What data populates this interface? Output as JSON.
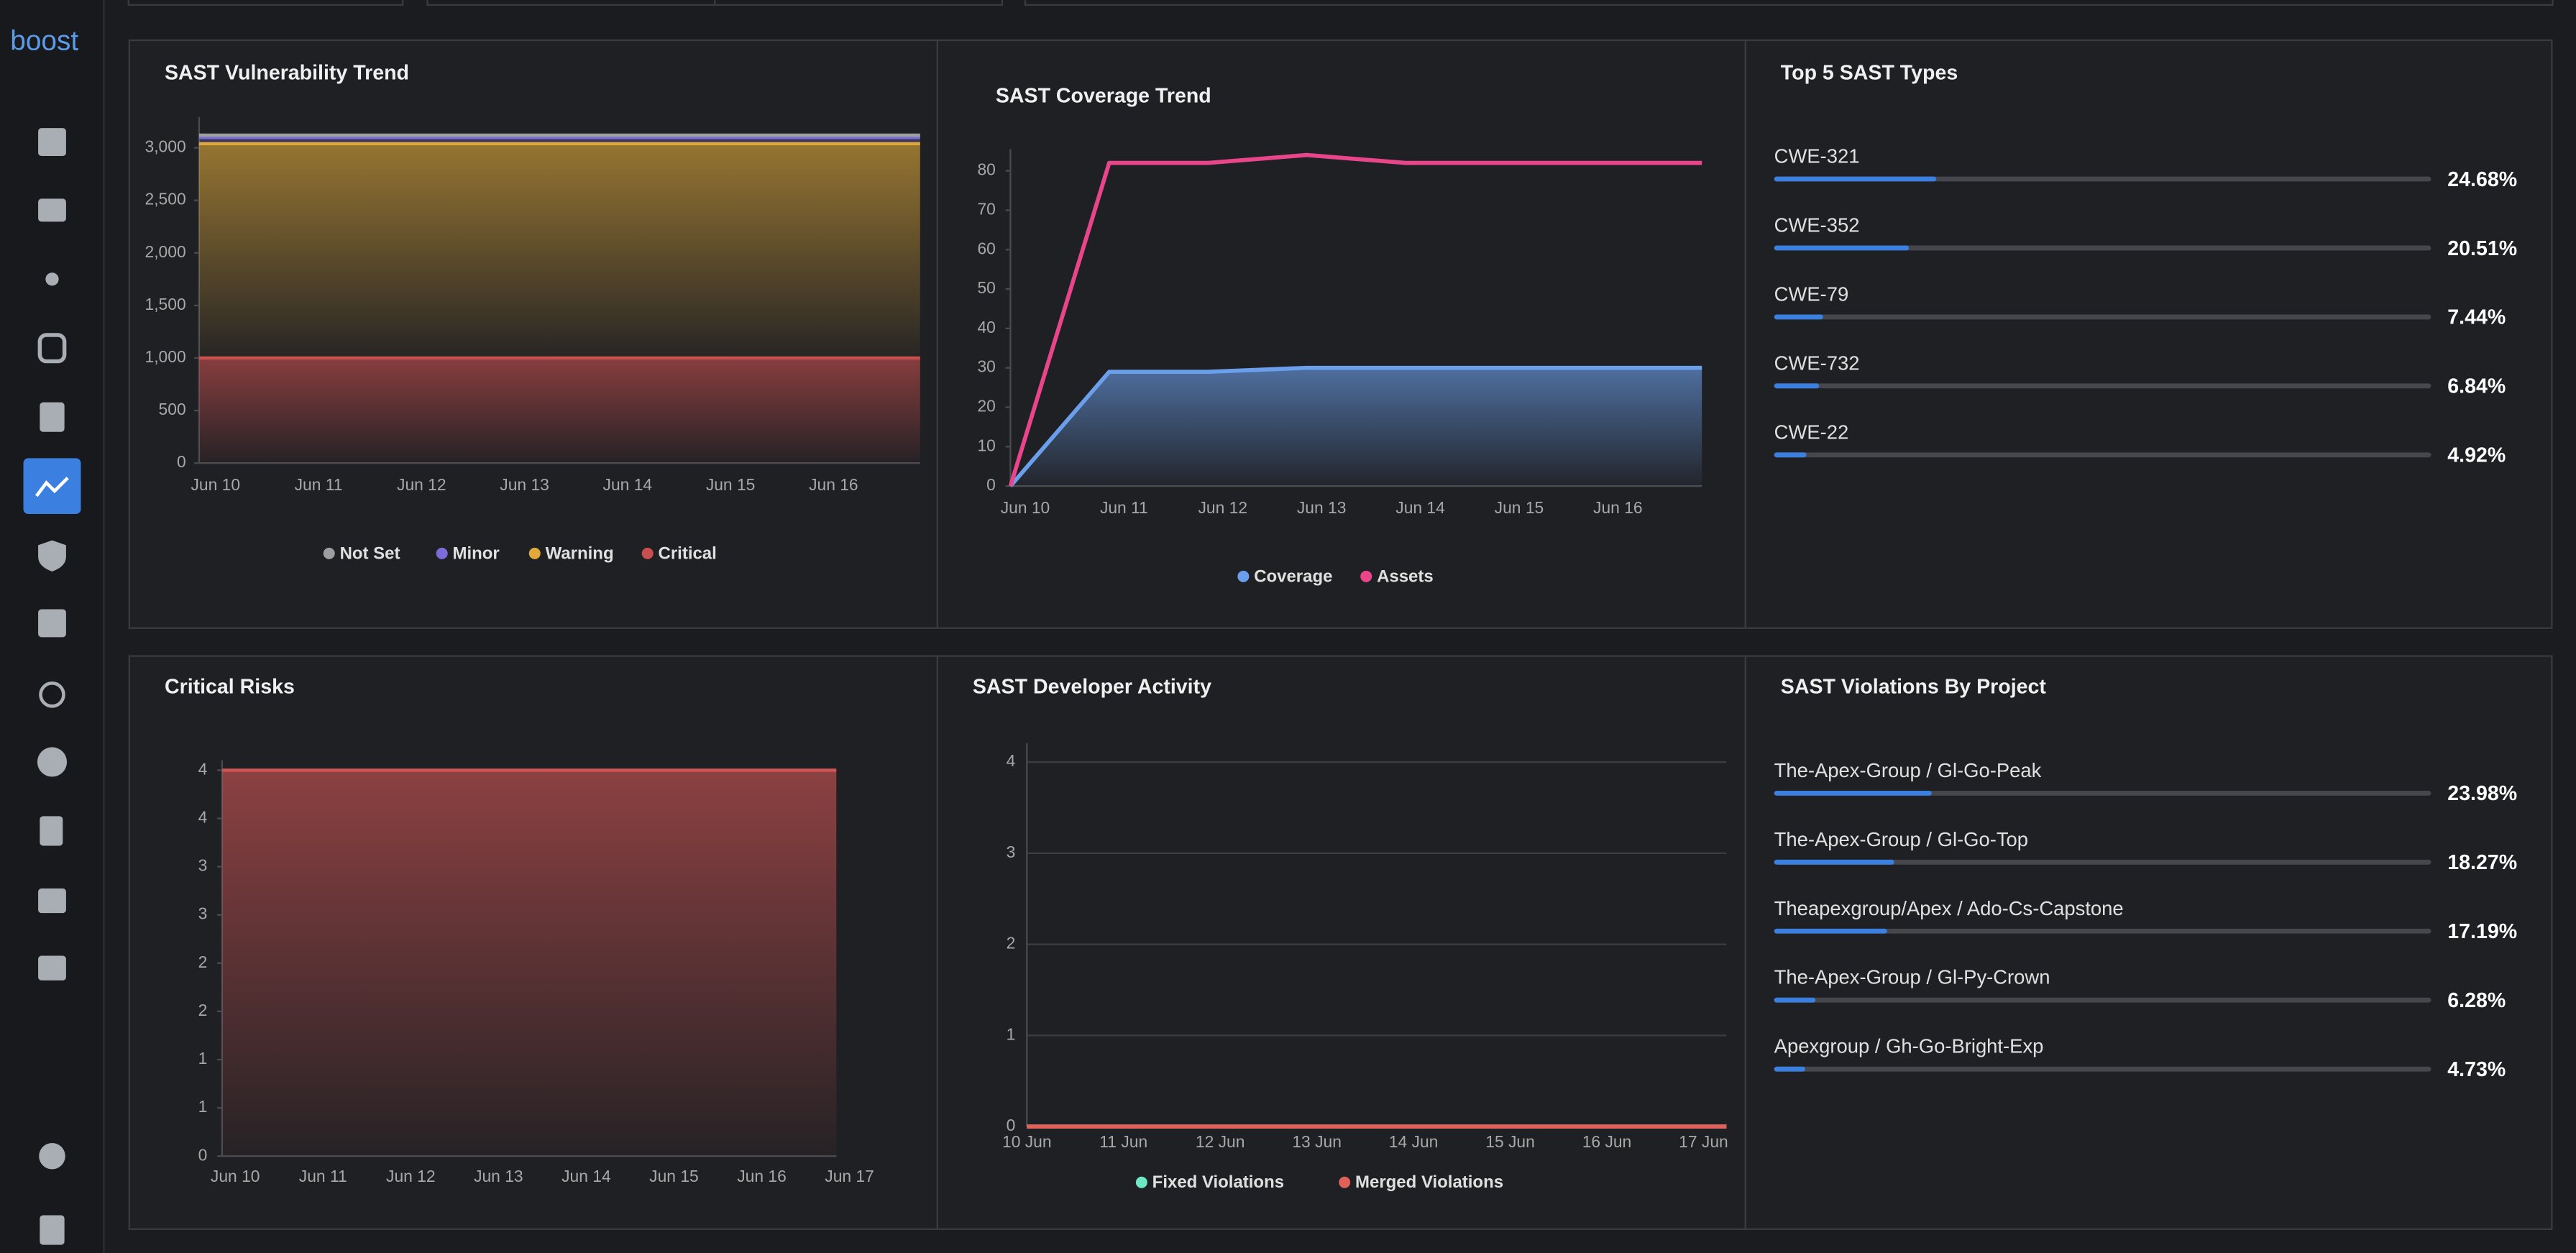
{
  "brand": "boost",
  "chart_data": [
    {
      "type": "area",
      "title": "SAST Vulnerability Trend",
      "stacked": true,
      "legend": "bottom",
      "categories": [
        "Jun 10",
        "Jun 11",
        "Jun 12",
        "Jun 13",
        "Jun 14",
        "Jun 15",
        "Jun 16",
        null
      ],
      "series": [
        {
          "name": "Not Set",
          "color": "#9e9e9e",
          "values": [
            20,
            20,
            20,
            20,
            20,
            20,
            20,
            20
          ]
        },
        {
          "name": "Minor",
          "color": "#7b6cd9",
          "values": [
            60,
            60,
            60,
            60,
            60,
            60,
            60,
            60
          ]
        },
        {
          "name": "Warning",
          "color": "#e0a93a",
          "values": [
            2040,
            2040,
            2040,
            2040,
            2040,
            2040,
            2040,
            2040
          ]
        },
        {
          "name": "Critical",
          "color": "#c94f4f",
          "values": [
            1000,
            1000,
            1000,
            1000,
            1000,
            1000,
            1000,
            1000
          ]
        }
      ],
      "ylim": [
        0,
        3200
      ],
      "yticks": [
        0,
        500,
        {
          "value": 1000,
          "label": "1,000"
        },
        {
          "value": 1500,
          "label": "1,500"
        },
        {
          "value": 2000,
          "label": "2,000"
        },
        {
          "value": 2500,
          "label": "2,500"
        },
        {
          "value": 3000,
          "label": "3,000"
        }
      ]
    },
    {
      "type": "line",
      "title": "SAST Coverage Trend",
      "legend": "bottom",
      "categories": [
        "Jun 10",
        "Jun 11",
        "Jun 12",
        "Jun 13",
        "Jun 14",
        "Jun 15",
        "Jun 16",
        null
      ],
      "series": [
        {
          "name": "Coverage",
          "color": "#6b9fec",
          "area": true,
          "values": [
            0,
            29,
            29,
            30,
            30,
            30,
            30,
            30
          ]
        },
        {
          "name": "Assets",
          "color": "#e8458b",
          "values": [
            0,
            82,
            82,
            84,
            82,
            82,
            82,
            82
          ]
        }
      ],
      "ylim": [
        0,
        83
      ],
      "yticks": [
        0,
        10,
        20,
        30,
        40,
        50,
        60,
        70,
        80
      ]
    },
    {
      "type": "progress",
      "title": "Top 5 SAST Types",
      "color": "#3b7fe0",
      "categories": [
        "CWE-321",
        "CWE-352",
        "CWE-79",
        "CWE-732",
        "CWE-22"
      ],
      "values": [
        24.68,
        20.51,
        7.44,
        6.84,
        4.92
      ],
      "value_labels": [
        "24.68%",
        "20.51%",
        "7.44%",
        "6.84%",
        "4.92%"
      ]
    },
    {
      "type": "area",
      "title": "Critical Risks",
      "color": "#d05555",
      "categories": [
        "Jun 10",
        "Jun 11",
        "Jun 12",
        "Jun 13",
        "Jun 14",
        "Jun 15",
        "Jun 16",
        "Jun 17"
      ],
      "values": [
        4,
        4,
        4,
        4,
        4,
        4,
        4,
        4
      ],
      "ylim": [
        0,
        4
      ],
      "yticks": [
        0,
        {
          "value": 0.5,
          "label": "1"
        },
        1,
        {
          "value": 1.5,
          "label": "2"
        },
        2,
        {
          "value": 2.5,
          "label": "3"
        },
        3,
        {
          "value": 3.5,
          "label": "4"
        },
        4
      ]
    },
    {
      "type": "line",
      "title": "SAST Developer Activity",
      "legend": "bottom",
      "grid": true,
      "categories": [
        "10 Jun",
        "11 Jun",
        "12 Jun",
        "13 Jun",
        "14 Jun",
        "15 Jun",
        "16 Jun",
        "17 Jun"
      ],
      "series": [
        {
          "name": "Fixed Violations",
          "color": "#6ee7c7",
          "values": [
            0,
            0,
            0,
            0,
            0,
            0,
            0,
            0
          ]
        },
        {
          "name": "Merged Violations",
          "color": "#e0605a",
          "values": [
            0,
            0,
            0,
            0,
            0,
            0,
            0,
            0
          ]
        }
      ],
      "ylim": [
        0,
        4.1
      ],
      "yticks": [
        0,
        1,
        2,
        3,
        4
      ]
    },
    {
      "type": "progress",
      "title": "SAST Violations By Project",
      "color": "#3b7fe0",
      "categories": [
        "The-Apex-Group / Gl-Go-Peak",
        "The-Apex-Group / Gl-Go-Top",
        "Theapexgroup/Apex / Ado-Cs-Capstone",
        "The-Apex-Group / Gl-Py-Crown",
        "Apexgroup / Gh-Go-Bright-Exp"
      ],
      "values": [
        23.98,
        18.27,
        17.19,
        6.28,
        4.73
      ],
      "value_labels": [
        "23.98%",
        "18.27%",
        "17.19%",
        "6.28%",
        "4.73%"
      ]
    }
  ]
}
